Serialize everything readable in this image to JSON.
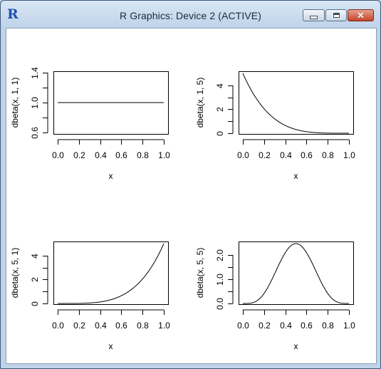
{
  "window": {
    "app_icon_letter": "R",
    "title": "R Graphics: Device 2 (ACTIVE)"
  },
  "chart_data": [
    {
      "type": "line",
      "function": "dbeta(x, 1, 1)",
      "xlabel": "x",
      "ylabel": "dbeta(x, 1, 1)",
      "xlim": [
        0,
        1
      ],
      "ylim": [
        0.6,
        1.4
      ],
      "x_ticks": [
        0.0,
        0.2,
        0.4,
        0.6,
        0.8,
        1.0
      ],
      "x_tick_labels": [
        "0.0",
        "0.2",
        "0.4",
        "0.6",
        "0.8",
        "1.0"
      ],
      "y_ticks": [
        0.6,
        0.8,
        1.0,
        1.2,
        1.4
      ],
      "y_tick_labels": [
        "0.6",
        "",
        "1.0",
        "",
        "1.4"
      ],
      "shape": [
        1,
        1
      ],
      "grid": false
    },
    {
      "type": "line",
      "function": "dbeta(x, 1, 5)",
      "xlabel": "x",
      "ylabel": "dbeta(x, 1, 5)",
      "xlim": [
        0,
        1
      ],
      "ylim": [
        0,
        5
      ],
      "x_ticks": [
        0.0,
        0.2,
        0.4,
        0.6,
        0.8,
        1.0
      ],
      "x_tick_labels": [
        "0.0",
        "0.2",
        "0.4",
        "0.6",
        "0.8",
        "1.0"
      ],
      "y_ticks": [
        0,
        1,
        2,
        3,
        4
      ],
      "y_tick_labels": [
        "0",
        "",
        "2",
        "",
        "4"
      ],
      "shape": [
        1,
        5
      ],
      "grid": false
    },
    {
      "type": "line",
      "function": "dbeta(x, 5, 1)",
      "xlabel": "x",
      "ylabel": "dbeta(x, 5, 1)",
      "xlim": [
        0,
        1
      ],
      "ylim": [
        0,
        5
      ],
      "x_ticks": [
        0.0,
        0.2,
        0.4,
        0.6,
        0.8,
        1.0
      ],
      "x_tick_labels": [
        "0.0",
        "0.2",
        "0.4",
        "0.6",
        "0.8",
        "1.0"
      ],
      "y_ticks": [
        0,
        1,
        2,
        3,
        4
      ],
      "y_tick_labels": [
        "0",
        "",
        "2",
        "",
        "4"
      ],
      "shape": [
        5,
        1
      ],
      "grid": false
    },
    {
      "type": "line",
      "function": "dbeta(x, 5, 5)",
      "xlabel": "x",
      "ylabel": "dbeta(x, 5, 5)",
      "xlim": [
        0,
        1
      ],
      "ylim": [
        0,
        2.46
      ],
      "x_ticks": [
        0.0,
        0.2,
        0.4,
        0.6,
        0.8,
        1.0
      ],
      "x_tick_labels": [
        "0.0",
        "0.2",
        "0.4",
        "0.6",
        "0.8",
        "1.0"
      ],
      "y_ticks": [
        0.0,
        0.5,
        1.0,
        1.5,
        2.0
      ],
      "y_tick_labels": [
        "0.0",
        "",
        "1.0",
        "",
        "2.0"
      ],
      "shape": [
        5,
        5
      ],
      "grid": false
    }
  ]
}
